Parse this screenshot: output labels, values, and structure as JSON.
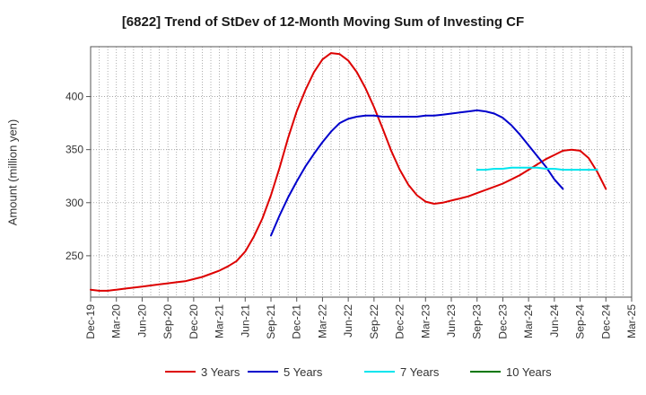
{
  "chart_data": {
    "type": "line",
    "title": "[6822]  Trend of StDev of 12-Month Moving Sum of Investing CF",
    "ylabel": "Amount (million yen)",
    "xlabel": "",
    "ylim": [
      211,
      447
    ],
    "y_ticks": [
      250,
      300,
      350,
      400
    ],
    "x_tick_labels": [
      "Dec-19",
      "Mar-20",
      "Jun-20",
      "Sep-20",
      "Dec-20",
      "Mar-21",
      "Jun-21",
      "Sep-21",
      "Dec-21",
      "Mar-22",
      "Jun-22",
      "Sep-22",
      "Dec-22",
      "Mar-23",
      "Jun-23",
      "Sep-23",
      "Dec-23",
      "Mar-24",
      "Jun-24",
      "Sep-24",
      "Dec-24",
      "Mar-25"
    ],
    "x_unit": "month index from Dec-19",
    "grid": true,
    "legend_position": "bottom",
    "series": [
      {
        "name": "3 Years",
        "color": "#dd0000",
        "start_index": 0,
        "values": [
          218,
          217,
          217,
          218,
          219,
          220,
          221,
          222,
          223,
          224,
          225,
          226,
          228,
          230,
          233,
          236,
          240,
          245,
          254,
          268,
          285,
          307,
          333,
          361,
          386,
          406,
          423,
          435,
          441,
          440,
          434,
          423,
          408,
          390,
          370,
          349,
          331,
          317,
          307,
          301,
          299,
          300,
          302,
          304,
          306,
          309,
          312,
          315,
          318,
          322,
          326,
          331,
          336,
          341,
          345,
          349,
          350,
          349,
          342,
          329,
          313
        ]
      },
      {
        "name": "5 Years",
        "color": "#0000cc",
        "start_index": 21,
        "values": [
          269,
          288,
          305,
          320,
          334,
          346,
          357,
          367,
          375,
          379,
          381,
          382,
          382,
          381,
          381,
          381,
          381,
          381,
          382,
          382,
          383,
          384,
          385,
          386,
          387,
          386,
          384,
          380,
          373,
          364,
          354,
          344,
          334,
          322,
          313
        ]
      },
      {
        "name": "7 Years",
        "color": "#00e5ee",
        "start_index": 45,
        "values": [
          331,
          331,
          332,
          332,
          333,
          333,
          333,
          333,
          332,
          332,
          331,
          331,
          331,
          331,
          331
        ]
      },
      {
        "name": "10 Years",
        "color": "#007700",
        "start_index": 0,
        "values": []
      }
    ]
  }
}
